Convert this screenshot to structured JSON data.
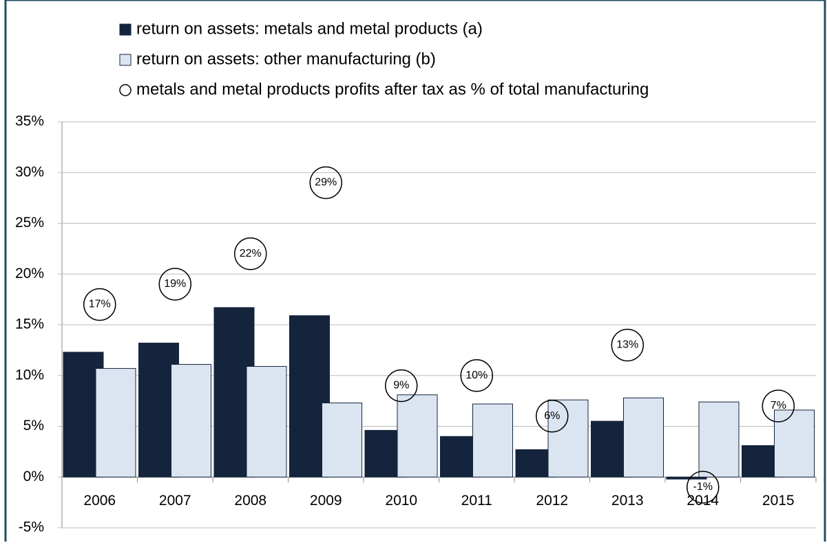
{
  "chart_data": {
    "type": "bar",
    "categories": [
      "2006",
      "2007",
      "2008",
      "2009",
      "2010",
      "2011",
      "2012",
      "2013",
      "2014",
      "2015"
    ],
    "series": [
      {
        "name": "return on assets: metals and metal products (a)",
        "color": "#14243d",
        "values": [
          12.3,
          13.2,
          16.7,
          15.9,
          4.6,
          4.0,
          2.7,
          5.5,
          -0.2,
          3.1
        ]
      },
      {
        "name": "return on assets: other manufacturing (b)",
        "color": "#dbe5f1",
        "values": [
          10.7,
          11.1,
          10.9,
          7.3,
          8.1,
          7.2,
          7.6,
          7.8,
          7.4,
          6.6
        ]
      },
      {
        "name": "metals and metal products profits after tax as % of total manufacturing",
        "color": "#ffffff",
        "type": "scatter",
        "values": [
          17,
          19,
          22,
          29,
          9,
          10,
          6,
          13,
          -1,
          7
        ],
        "value_labels": [
          "17%",
          "19%",
          "22%",
          "29%",
          "9%",
          "10%",
          "6%",
          "13%",
          "-1%",
          "7%"
        ]
      }
    ],
    "ylim": [
      -5,
      35
    ],
    "yticks": [
      {
        "value": -5,
        "label": "-5%"
      },
      {
        "value": 0,
        "label": "0%"
      },
      {
        "value": 5,
        "label": "5%"
      },
      {
        "value": 10,
        "label": "10%"
      },
      {
        "value": 15,
        "label": "15%"
      },
      {
        "value": 20,
        "label": "20%"
      },
      {
        "value": 25,
        "label": "25%"
      },
      {
        "value": 30,
        "label": "30%"
      },
      {
        "value": 35,
        "label": "35%"
      }
    ],
    "grid": true
  }
}
